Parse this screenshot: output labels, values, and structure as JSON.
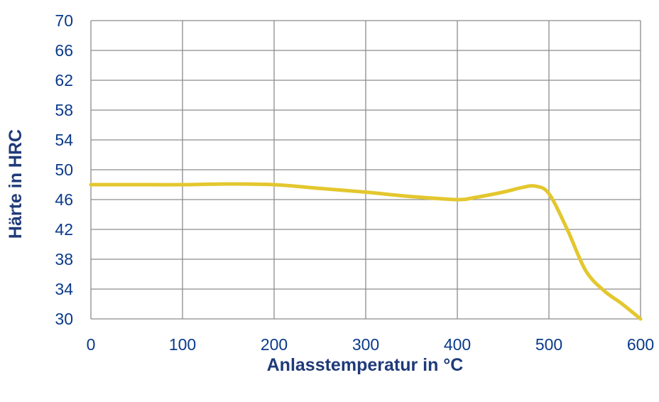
{
  "chart_data": {
    "type": "line",
    "title": "",
    "xlabel": "Anlasstemperatur in °C",
    "ylabel": "Härte in HRC",
    "xlim": [
      0,
      600
    ],
    "ylim": [
      30,
      70
    ],
    "x_ticks": [
      0,
      100,
      200,
      300,
      400,
      500,
      600
    ],
    "y_ticks": [
      30,
      34,
      38,
      42,
      46,
      50,
      54,
      58,
      62,
      66,
      70
    ],
    "grid": true,
    "legend": "none",
    "colors": {
      "line": "#E3C72E",
      "grid": "#8c8c8c",
      "axis_text": "#1F3A78",
      "tick_text": "#0a3a8a"
    },
    "series": [
      {
        "x": [
          0,
          50,
          100,
          150,
          200,
          250,
          300,
          350,
          400,
          420,
          450,
          470,
          485,
          500,
          520,
          540,
          560,
          580,
          600
        ],
        "values": [
          48,
          48,
          48,
          48.1,
          48,
          47.5,
          47,
          46.4,
          46,
          46.3,
          47,
          47.6,
          47.8,
          46.8,
          42,
          36.5,
          33.8,
          32,
          30
        ]
      }
    ]
  }
}
